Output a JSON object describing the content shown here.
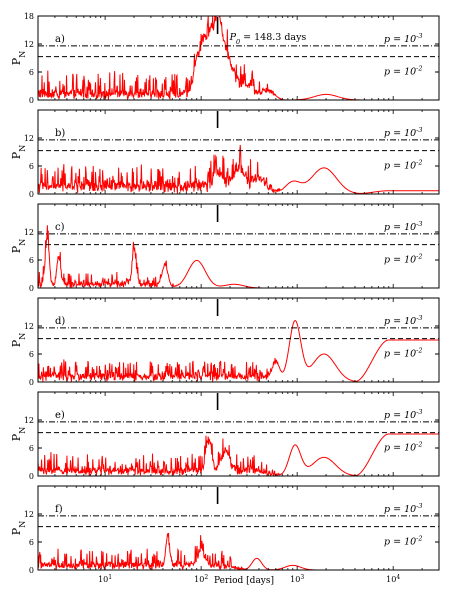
{
  "chart_data": {
    "type": "line",
    "xscale": "log",
    "xlabel": "Period [days]",
    "xlim": [
      2,
      30000
    ],
    "xticks": [
      "10^1",
      "10^2",
      "10^3",
      "10^4"
    ],
    "ylabel": "P_N",
    "ylim": [
      0,
      18
    ],
    "series_color": "#ff0000",
    "reference_period": 148.3,
    "annotation": "P_0 = 148.3 days",
    "thresholds": [
      {
        "label": "p = 10^-3",
        "style": "dash-dot",
        "value": 11.6
      },
      {
        "label": "p = 10^-2",
        "style": "dashed",
        "value": 9.3
      }
    ],
    "panels": [
      {
        "letter": "a)",
        "yticks": [
          0,
          6,
          12,
          18
        ],
        "show_top_tick": true,
        "noise": {
          "base": 2.0,
          "amp": 3.5
        },
        "peaks": [
          {
            "period": 148.3,
            "height": 15.8,
            "width": 0.035
          },
          {
            "period": 125,
            "height": 11.5,
            "width": 0.03
          },
          {
            "period": 108,
            "height": 9.5,
            "width": 0.03
          },
          {
            "period": 92,
            "height": 7.5,
            "width": 0.04
          },
          {
            "period": 175,
            "height": 8.0,
            "width": 0.04
          },
          {
            "period": 210,
            "height": 4.5,
            "width": 0.05
          },
          {
            "period": 300,
            "height": 2.2,
            "width": 0.06
          },
          {
            "period": 500,
            "height": 1.5,
            "width": 0.06
          },
          {
            "period": 2000,
            "height": 1.2,
            "width": 0.12
          }
        ]
      },
      {
        "letter": "b)",
        "yticks": [
          0,
          6,
          12
        ],
        "show_top_tick": false,
        "noise": {
          "base": 2.5,
          "amp": 3.0
        },
        "peaks": [
          {
            "period": 150,
            "height": 3.5,
            "width": 0.05
          },
          {
            "period": 250,
            "height": 4.5,
            "width": 0.05
          },
          {
            "period": 400,
            "height": 2.0,
            "width": 0.06
          },
          {
            "period": 900,
            "height": 2.5,
            "width": 0.08
          },
          {
            "period": 1900,
            "height": 5.6,
            "width": 0.13
          }
        ],
        "tail": 0.7
      },
      {
        "letter": "c)",
        "yticks": [
          0,
          6,
          12
        ],
        "show_top_tick": false,
        "noise": {
          "base": 1.2,
          "amp": 2.0
        },
        "peaks": [
          {
            "period": 2.5,
            "height": 10.0,
            "width": 0.02
          },
          {
            "period": 3.3,
            "height": 6.0,
            "width": 0.02
          },
          {
            "period": 20,
            "height": 7.8,
            "width": 0.02
          },
          {
            "period": 42,
            "height": 4.5,
            "width": 0.03
          },
          {
            "period": 90,
            "height": 5.9,
            "width": 0.09
          },
          {
            "period": 220,
            "height": 0.8,
            "width": 0.1
          }
        ],
        "noise_max_period": 60
      },
      {
        "letter": "d)",
        "yticks": [
          0,
          6,
          12
        ],
        "show_top_tick": false,
        "noise": {
          "base": 1.8,
          "amp": 2.5
        },
        "peaks": [
          {
            "period": 600,
            "height": 4.0,
            "width": 0.04
          },
          {
            "period": 950,
            "height": 12.9,
            "width": 0.06
          },
          {
            "period": 1900,
            "height": 6.0,
            "width": 0.12
          }
        ],
        "tail": 9.0
      },
      {
        "letter": "e)",
        "yticks": [
          0,
          6,
          12
        ],
        "show_top_tick": false,
        "noise": {
          "base": 1.8,
          "amp": 2.6
        },
        "peaks": [
          {
            "period": 120,
            "height": 6.5,
            "width": 0.03
          },
          {
            "period": 180,
            "height": 4.5,
            "width": 0.04
          },
          {
            "period": 950,
            "height": 6.5,
            "width": 0.06
          },
          {
            "period": 1900,
            "height": 4.0,
            "width": 0.12
          }
        ],
        "tail": 9.0
      },
      {
        "letter": "f)",
        "yticks": [
          0,
          6,
          12
        ],
        "show_top_tick": false,
        "noise": {
          "base": 1.6,
          "amp": 2.8
        },
        "peaks": [
          {
            "period": 45,
            "height": 6.2,
            "width": 0.02
          },
          {
            "period": 100,
            "height": 3.5,
            "width": 0.03
          },
          {
            "period": 380,
            "height": 2.5,
            "width": 0.05
          },
          {
            "period": 900,
            "height": 1.0,
            "width": 0.08
          }
        ],
        "noise_max_period": 300
      }
    ]
  }
}
